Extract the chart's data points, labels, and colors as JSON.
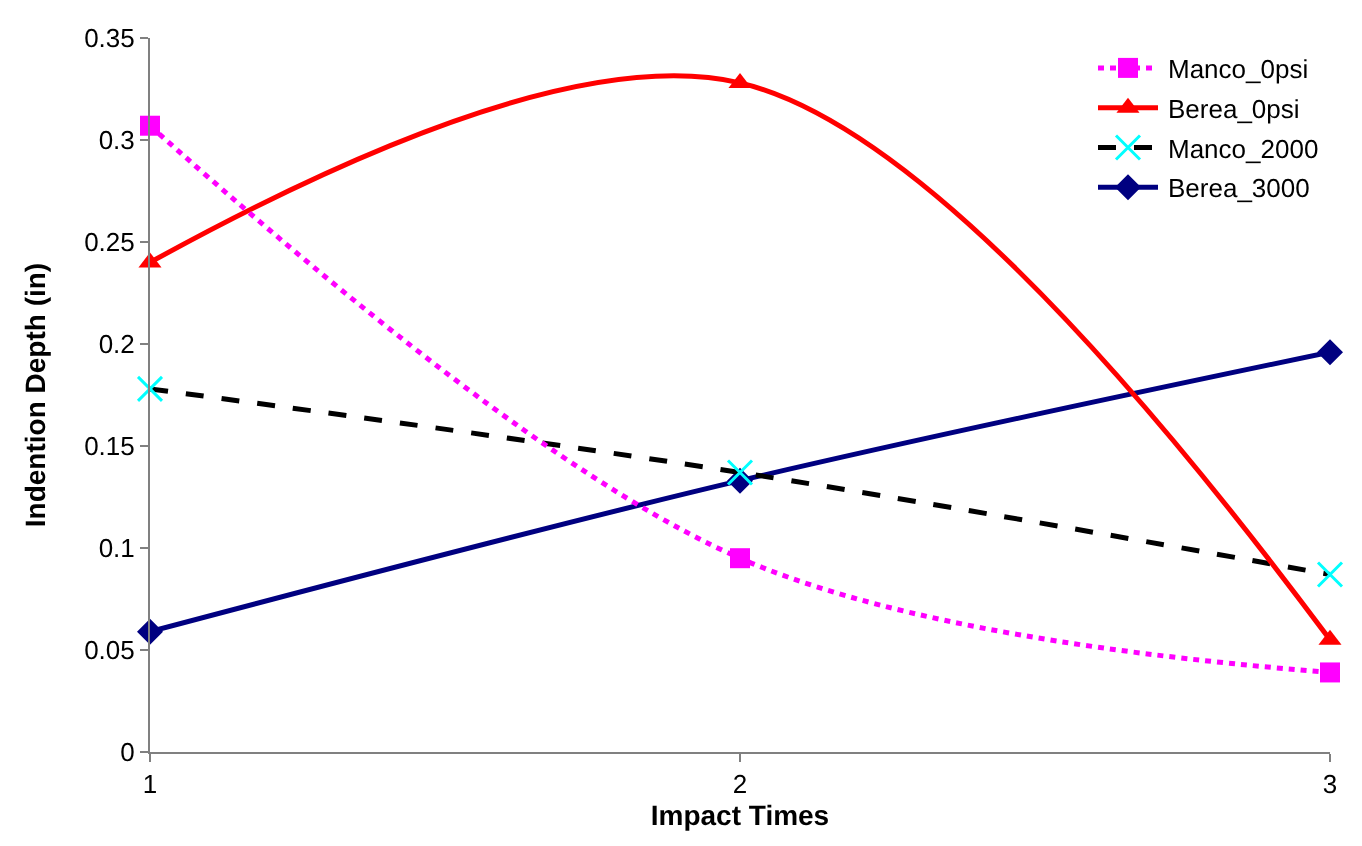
{
  "chart_data": {
    "type": "line",
    "xlabel": "Impact Times",
    "ylabel": "Indention Depth (in)",
    "x": [
      1,
      2,
      3
    ],
    "xlim": [
      1,
      3
    ],
    "xticks": [
      1,
      2,
      3
    ],
    "ylim": [
      0,
      0.35
    ],
    "yticks": [
      0,
      0.05,
      0.1,
      0.15,
      0.2,
      0.25,
      0.3,
      0.35
    ],
    "legend": "top right",
    "series": [
      {
        "name": "Manco_0psi",
        "color": "#ff00ff",
        "values": [
          0.307,
          0.095,
          0.039
        ],
        "marker": "square",
        "line_style": "dotted"
      },
      {
        "name": "Berea_0psi",
        "color": "#ff0000",
        "values": [
          0.24,
          0.328,
          0.055
        ],
        "marker": "triangle",
        "line_style": "solid"
      },
      {
        "name": "Manco_2000",
        "color": "#000000",
        "colors": [
          "#00ffff",
          "#00ffff",
          "#00ffff"
        ],
        "values": [
          0.178,
          0.137,
          0.087
        ],
        "marker": "cross",
        "line_style": "dashed"
      },
      {
        "name": "Berea_3000",
        "color": "#000080",
        "values": [
          0.059,
          0.133,
          0.196
        ],
        "marker": "diamond",
        "line_style": "solid"
      }
    ]
  }
}
